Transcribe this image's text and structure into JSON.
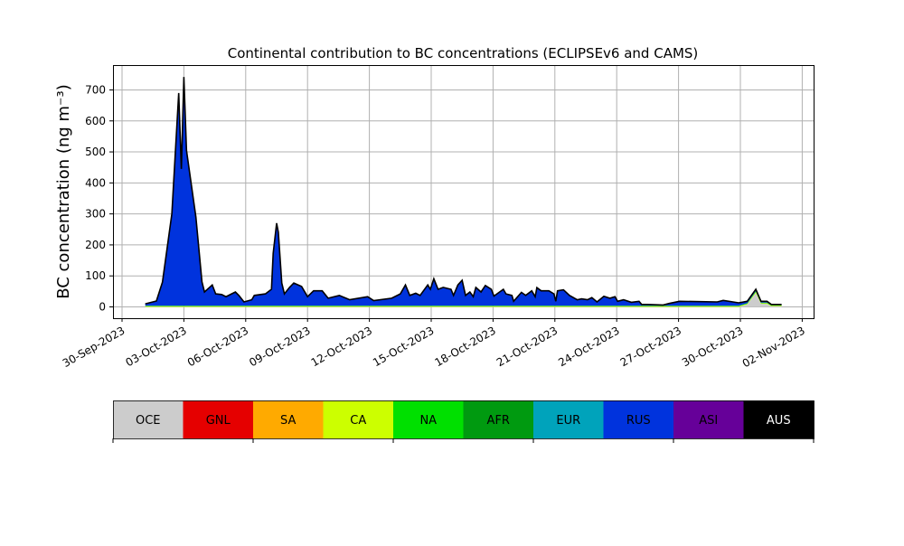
{
  "chart_data": {
    "type": "area",
    "stacked": true,
    "title": "Continental contribution to BC concentrations (ECLIPSEv6 and CAMS)",
    "xlabel": "",
    "ylabel": "BC concentration (ng m⁻³)",
    "ylim": [
      -20,
      780
    ],
    "xlim": [
      "2023-09-29 12:00",
      "2023-11-02 12:00"
    ],
    "yticks": [
      0,
      100,
      200,
      300,
      400,
      500,
      600,
      700
    ],
    "xticks": [
      "30-Sep-2023",
      "03-Oct-2023",
      "06-Oct-2023",
      "09-Oct-2023",
      "12-Oct-2023",
      "15-Oct-2023",
      "18-Oct-2023",
      "21-Oct-2023",
      "24-Oct-2023",
      "27-Oct-2023",
      "30-Oct-2023",
      "02-Nov-2023"
    ],
    "xtick_dates": [
      "2023-09-30 00:00",
      "2023-10-03 00:00",
      "2023-10-06 00:00",
      "2023-10-09 00:00",
      "2023-10-12 00:00",
      "2023-10-15 00:00",
      "2023-10-18 00:00",
      "2023-10-21 00:00",
      "2023-10-24 00:00",
      "2023-10-27 00:00",
      "2023-10-30 00:00",
      "2023-11-02 00:00"
    ],
    "grid": true,
    "legend": {
      "placement": "bottom colorbar",
      "entries": [
        {
          "label": "OCE",
          "color": "#cccccc"
        },
        {
          "label": "GNL",
          "color": "#e50000"
        },
        {
          "label": "SA",
          "color": "#ffaa00"
        },
        {
          "label": "CA",
          "color": "#ccff00"
        },
        {
          "label": "NA",
          "color": "#00e000"
        },
        {
          "label": "AFR",
          "color": "#009a10"
        },
        {
          "label": "EUR",
          "color": "#00a3bb"
        },
        {
          "label": "RUS",
          "color": "#0033dd"
        },
        {
          "label": "ASI",
          "color": "#660099"
        },
        {
          "label": "AUS",
          "color": "#000000"
        }
      ]
    },
    "x": [
      "2023-10-01 03:00",
      "2023-10-01 16:00",
      "2023-10-01 23:00",
      "2023-10-02 10:00",
      "2023-10-02 18:00",
      "2023-10-02 21:00",
      "2023-10-03 00:00",
      "2023-10-03 03:00",
      "2023-10-03 14:00",
      "2023-10-03 21:00",
      "2023-10-04 00:00",
      "2023-10-04 09:00",
      "2023-10-04 13:00",
      "2023-10-04 20:00",
      "2023-10-05 01:00",
      "2023-10-05 12:00",
      "2023-10-05 16:00",
      "2023-10-05 22:00",
      "2023-10-06 07:00",
      "2023-10-06 10:00",
      "2023-10-06 23:00",
      "2023-10-07 06:00",
      "2023-10-07 08:00",
      "2023-10-07 12:00",
      "2023-10-07 14:00",
      "2023-10-07 18:00",
      "2023-10-07 21:00",
      "2023-10-08 03:00",
      "2023-10-08 08:00",
      "2023-10-08 17:00",
      "2023-10-09 00:00",
      "2023-10-09 07:00",
      "2023-10-09 17:00",
      "2023-10-10 00:00",
      "2023-10-10 13:00",
      "2023-10-11 01:00",
      "2023-10-11 22:00",
      "2023-10-12 05:00",
      "2023-10-13 02:00",
      "2023-10-13 12:00",
      "2023-10-13 18:00",
      "2023-10-13 23:00",
      "2023-10-14 06:00",
      "2023-10-14 11:00",
      "2023-10-14 20:00",
      "2023-10-14 23:00",
      "2023-10-15 03:00",
      "2023-10-15 08:00",
      "2023-10-15 14:00",
      "2023-10-15 23:00",
      "2023-10-16 02:00",
      "2023-10-16 07:00",
      "2023-10-16 12:00",
      "2023-10-16 16:00",
      "2023-10-16 21:00",
      "2023-10-17 01:00",
      "2023-10-17 04:00",
      "2023-10-17 10:00",
      "2023-10-17 15:00",
      "2023-10-17 22:00",
      "2023-10-18 01:00",
      "2023-10-18 12:00",
      "2023-10-18 15:00",
      "2023-10-18 22:00",
      "2023-10-19 00:00",
      "2023-10-19 09:00",
      "2023-10-19 14:00",
      "2023-10-19 21:00",
      "2023-10-20 01:00",
      "2023-10-20 03:00",
      "2023-10-20 08:00",
      "2023-10-20 17:00",
      "2023-10-20 23:00",
      "2023-10-21 01:00",
      "2023-10-21 03:00",
      "2023-10-21 10:00",
      "2023-10-21 17:00",
      "2023-10-22 02:00",
      "2023-10-22 07:00",
      "2023-10-22 14:00",
      "2023-10-22 19:00",
      "2023-10-23 01:00",
      "2023-10-23 09:00",
      "2023-10-23 16:00",
      "2023-10-23 22:00",
      "2023-10-24 01:00",
      "2023-10-24 08:00",
      "2023-10-24 17:00",
      "2023-10-25 02:00",
      "2023-10-25 05:00",
      "2023-10-25 12:00",
      "2023-10-26 06:00",
      "2023-10-26 13:00",
      "2023-10-27 01:00",
      "2023-10-28 21:00",
      "2023-10-29 04:00",
      "2023-10-29 22:00",
      "2023-10-30 08:00",
      "2023-10-30 18:00",
      "2023-10-31 00:00",
      "2023-10-31 07:00",
      "2023-10-31 12:00",
      "2023-11-01 00:00"
    ],
    "series": [
      {
        "name": "OCE",
        "color": "#cccccc",
        "values": [
          0,
          0,
          0,
          0,
          0,
          0,
          0,
          0,
          0,
          0,
          0,
          0,
          0,
          0,
          0,
          0,
          0,
          0,
          0,
          0,
          0,
          0,
          0,
          0,
          0,
          0,
          0,
          0,
          0,
          0,
          0,
          0,
          0,
          0,
          0,
          0,
          0,
          0,
          0,
          0,
          0,
          0,
          0,
          0,
          0,
          0,
          0,
          0,
          0,
          0,
          0,
          0,
          0,
          0,
          0,
          0,
          0,
          0,
          0,
          0,
          0,
          0,
          0,
          0,
          0,
          0,
          0,
          0,
          0,
          0,
          0,
          0,
          0,
          0,
          0,
          0,
          0,
          0,
          0,
          0,
          0,
          0,
          0,
          0,
          0,
          0,
          0,
          0,
          0,
          0,
          0,
          0,
          0,
          0,
          0,
          0,
          0,
          8,
          45,
          10,
          10,
          2,
          2
        ]
      },
      {
        "name": "CA",
        "color": "#ccff00",
        "values": [
          2,
          2,
          2,
          2,
          2,
          2,
          2,
          2,
          2,
          2,
          2,
          2,
          2,
          2,
          2,
          2,
          2,
          2,
          2,
          2,
          2,
          2,
          2,
          2,
          2,
          2,
          2,
          2,
          2,
          2,
          2,
          2,
          2,
          2,
          2,
          2,
          2,
          2,
          2,
          2,
          2,
          2,
          2,
          2,
          2,
          2,
          2,
          2,
          2,
          2,
          2,
          2,
          2,
          2,
          2,
          2,
          2,
          2,
          2,
          2,
          2,
          2,
          2,
          2,
          2,
          2,
          2,
          2,
          2,
          2,
          2,
          2,
          2,
          2,
          2,
          2,
          2,
          2,
          2,
          2,
          2,
          2,
          2,
          2,
          2,
          2,
          2,
          2,
          2,
          2,
          2,
          2,
          2,
          2,
          2,
          2,
          2,
          2,
          3,
          2,
          2,
          2,
          2
        ]
      },
      {
        "name": "NA",
        "color": "#00e000",
        "values": [
          2,
          2,
          2,
          2,
          2,
          2,
          2,
          2,
          2,
          2,
          2,
          2,
          2,
          2,
          2,
          2,
          2,
          2,
          2,
          2,
          2,
          2,
          2,
          2,
          2,
          2,
          2,
          2,
          2,
          2,
          2,
          2,
          2,
          2,
          2,
          2,
          2,
          2,
          2,
          2,
          2,
          2,
          2,
          2,
          2,
          2,
          2,
          2,
          2,
          2,
          2,
          2,
          2,
          2,
          2,
          2,
          2,
          2,
          2,
          2,
          2,
          2,
          2,
          2,
          2,
          2,
          2,
          2,
          2,
          2,
          2,
          2,
          2,
          2,
          2,
          2,
          2,
          2,
          2,
          2,
          2,
          2,
          2,
          2,
          2,
          2,
          2,
          2,
          2,
          2,
          2,
          2,
          2,
          2,
          2,
          2,
          2,
          2,
          3,
          2,
          2,
          2,
          2
        ]
      },
      {
        "name": "RUS",
        "color": "#0033dd",
        "values": [
          6,
          15,
          76,
          296,
          686,
          441,
          738,
          501,
          286,
          77,
          44,
          67,
          38,
          36,
          29,
          44,
          33,
          12,
          19,
          33,
          38,
          53,
          169,
          266,
          237,
          73,
          38,
          59,
          73,
          62,
          29,
          48,
          48,
          24,
          33,
          19,
          29,
          16,
          24,
          38,
          67,
          33,
          40,
          33,
          67,
          53,
          87,
          53,
          59,
          53,
          33,
          67,
          82,
          33,
          44,
          29,
          59,
          44,
          65,
          53,
          31,
          53,
          38,
          33,
          14,
          43,
          33,
          48,
          29,
          58,
          48,
          48,
          38,
          14,
          48,
          51,
          33,
          19,
          22,
          19,
          26,
          12,
          30,
          24,
          29,
          14,
          19,
          11,
          14,
          4,
          4,
          2,
          7,
          14,
          12,
          17,
          9,
          6,
          6,
          4,
          4,
          2,
          2
        ]
      }
    ]
  }
}
